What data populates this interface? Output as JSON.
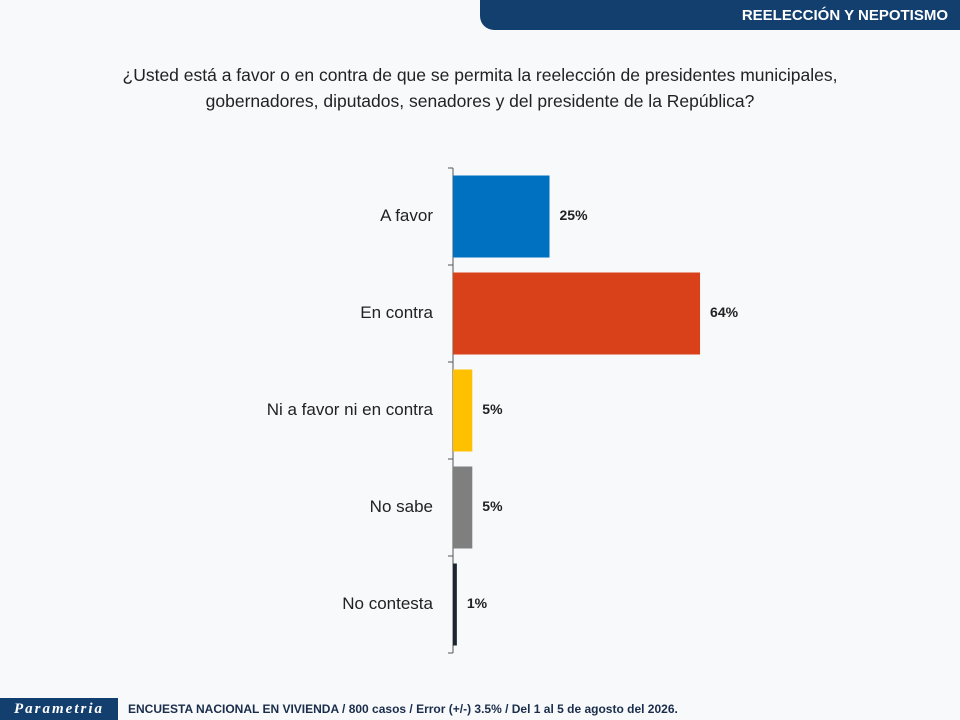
{
  "header": {
    "section": "REELECCIÓN Y NEPOTISMO"
  },
  "chart_data": {
    "type": "hbar",
    "title": "¿Usted está a favor o en contra de que se permita la reelección de presidentes municipales, gobernadores, diputados, senadores y del presidente de la República?",
    "categories": [
      "A favor",
      "En contra",
      "Ni a favor ni en contra",
      "No sabe",
      "No contesta"
    ],
    "values": [
      25,
      64,
      5,
      5,
      1
    ],
    "value_labels": [
      "25%",
      "64%",
      "5%",
      "5%",
      "1%"
    ],
    "colors": [
      "#0070c0",
      "#d9411a",
      "#ffc000",
      "#7f7f7f",
      "#1c2530"
    ]
  },
  "footer": {
    "brand": "Parametria",
    "note": "ENCUESTA NACIONAL EN VIVIENDA / 800 casos / Error (+/-) 3.5% / Del 1 al 5 de agosto del 2026."
  }
}
